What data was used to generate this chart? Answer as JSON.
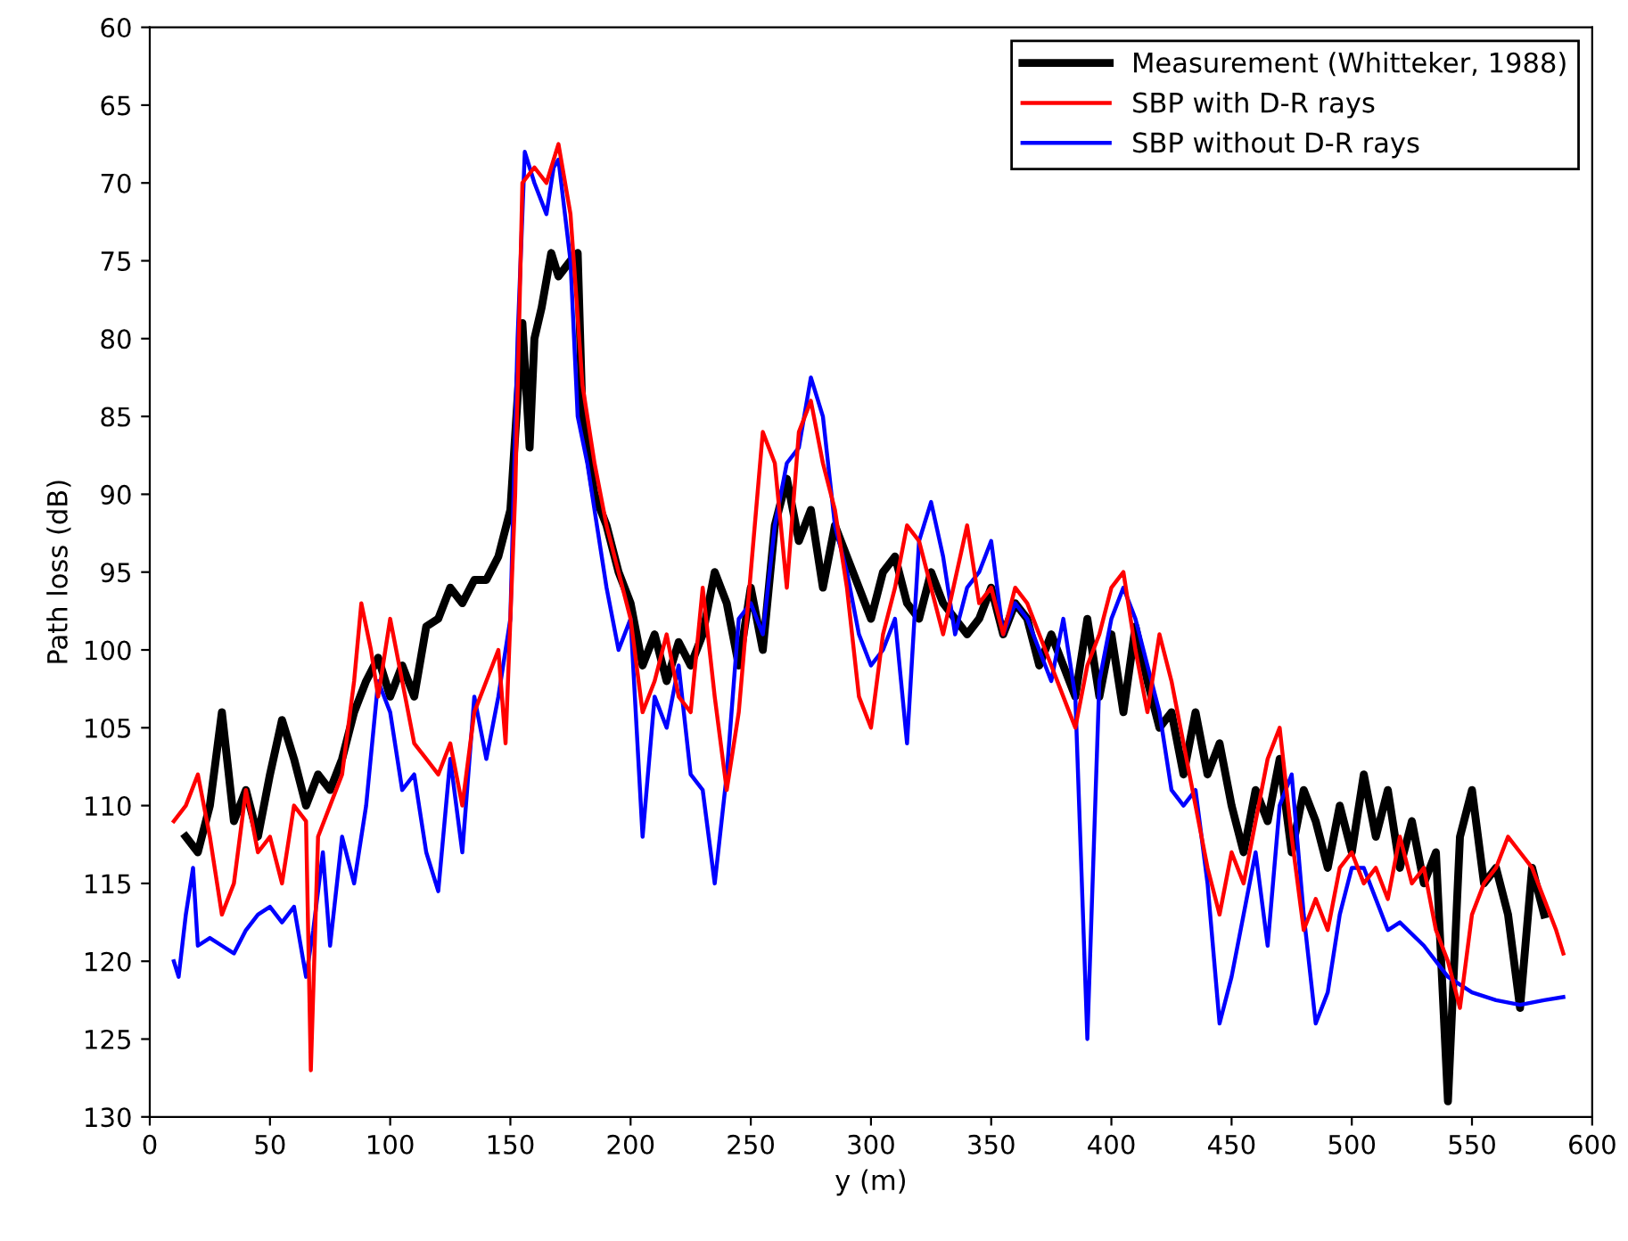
{
  "chart_data": {
    "type": "line",
    "xlabel": "y (m)",
    "ylabel": "Path loss (dB)",
    "xlim": [
      0,
      600
    ],
    "ylim": [
      130,
      60
    ],
    "xticks": [
      0,
      50,
      100,
      150,
      200,
      250,
      300,
      350,
      400,
      450,
      500,
      550,
      600
    ],
    "yticks": [
      60,
      65,
      70,
      75,
      80,
      85,
      90,
      95,
      100,
      105,
      110,
      115,
      120,
      125,
      130
    ],
    "grid": false,
    "legend": "top right",
    "marker": "none",
    "line_style": "solid",
    "series": [
      {
        "name": "Measurement (Whitteker, 1988)",
        "color": "#000000",
        "x": [
          15,
          20,
          25,
          30,
          35,
          40,
          45,
          50,
          55,
          60,
          65,
          70,
          75,
          80,
          85,
          90,
          95,
          100,
          105,
          110,
          115,
          120,
          125,
          130,
          135,
          140,
          145,
          150,
          155,
          158,
          160,
          163,
          167,
          170,
          175,
          178,
          180,
          185,
          190,
          195,
          200,
          205,
          210,
          215,
          220,
          225,
          230,
          235,
          240,
          245,
          250,
          255,
          260,
          265,
          270,
          275,
          280,
          285,
          290,
          295,
          300,
          305,
          310,
          315,
          320,
          325,
          330,
          340,
          345,
          350,
          355,
          360,
          365,
          370,
          375,
          380,
          385,
          390,
          395,
          400,
          405,
          410,
          415,
          420,
          425,
          430,
          435,
          440,
          445,
          450,
          455,
          460,
          465,
          470,
          475,
          480,
          485,
          490,
          495,
          500,
          505,
          510,
          515,
          520,
          525,
          530,
          535,
          540,
          545,
          550,
          555,
          560,
          565,
          570,
          575,
          580
        ],
        "values": [
          112,
          113,
          110,
          104,
          111,
          109,
          112,
          108,
          104.5,
          107,
          110,
          108,
          109,
          107,
          104,
          102,
          100.5,
          103,
          101,
          103,
          98.5,
          98,
          96,
          97,
          95.5,
          95.5,
          94,
          91,
          79,
          87,
          80,
          78,
          74.5,
          76,
          75,
          74.5,
          85,
          90,
          92,
          95,
          97,
          101,
          99,
          102,
          99.5,
          101,
          99,
          95,
          97,
          101,
          96,
          100,
          92,
          89,
          93,
          91,
          96,
          92,
          94,
          96,
          98,
          95,
          94,
          97,
          98,
          95,
          97,
          99,
          98,
          96,
          99,
          97,
          98,
          101,
          99,
          101,
          103,
          98,
          103,
          99,
          104,
          98.5,
          102,
          105,
          104,
          108,
          104,
          108,
          106,
          110,
          113,
          109,
          111,
          107,
          113,
          109,
          111,
          114,
          110,
          113,
          108,
          112,
          109,
          114,
          111,
          115,
          113,
          129,
          112,
          109,
          115,
          114,
          117,
          123,
          114,
          117
        ]
      },
      {
        "name": "SBP with D-R rays",
        "color": "#ff0000",
        "x": [
          10,
          15,
          20,
          25,
          30,
          35,
          40,
          45,
          50,
          55,
          60,
          65,
          67,
          70,
          75,
          80,
          85,
          88,
          92,
          95,
          100,
          105,
          110,
          115,
          120,
          125,
          130,
          135,
          140,
          145,
          148,
          152,
          155,
          160,
          165,
          170,
          175,
          180,
          185,
          190,
          195,
          200,
          205,
          210,
          215,
          220,
          225,
          230,
          235,
          240,
          245,
          250,
          255,
          260,
          265,
          270,
          275,
          280,
          285,
          290,
          295,
          300,
          305,
          310,
          315,
          320,
          325,
          330,
          340,
          345,
          350,
          355,
          360,
          365,
          370,
          375,
          380,
          385,
          390,
          395,
          400,
          405,
          410,
          415,
          420,
          425,
          430,
          435,
          440,
          445,
          450,
          455,
          460,
          465,
          470,
          475,
          480,
          485,
          490,
          495,
          500,
          505,
          510,
          515,
          520,
          525,
          530,
          535,
          540,
          545,
          550,
          555,
          560,
          565,
          570,
          575,
          580,
          585,
          588
        ],
        "values": [
          111,
          110,
          108,
          112,
          117,
          115,
          109,
          113,
          112,
          115,
          110,
          111,
          127,
          112,
          110,
          108,
          102,
          97,
          100,
          103,
          98,
          102,
          106,
          107,
          108,
          106,
          110,
          104,
          102,
          100,
          106,
          90,
          70,
          69,
          70,
          67.5,
          72,
          83,
          88,
          92,
          95,
          98,
          104,
          102,
          99,
          103,
          104,
          96,
          103,
          109,
          104,
          95,
          86,
          88,
          96,
          86,
          84,
          88,
          91,
          96,
          103,
          105,
          99,
          96,
          92,
          93,
          96,
          99,
          92,
          97,
          96,
          99,
          96,
          97,
          99,
          101,
          103,
          105,
          101,
          99,
          96,
          95,
          100,
          104,
          99,
          102,
          106,
          110,
          114,
          117,
          113,
          115,
          111,
          107,
          105,
          112,
          118,
          116,
          118,
          114,
          113,
          115,
          114,
          116,
          112,
          115,
          114,
          118,
          120,
          123,
          117,
          115,
          114,
          112,
          113,
          114,
          116,
          118,
          119.5
        ]
      },
      {
        "name": "SBP without D-R rays",
        "color": "#0000ff",
        "x": [
          10,
          12,
          15,
          18,
          20,
          25,
          30,
          35,
          40,
          45,
          50,
          55,
          60,
          65,
          68,
          72,
          75,
          80,
          85,
          90,
          95,
          100,
          105,
          110,
          115,
          120,
          125,
          130,
          135,
          140,
          145,
          150,
          153,
          156,
          160,
          165,
          168,
          170,
          175,
          178,
          182,
          186,
          190,
          195,
          200,
          205,
          210,
          215,
          220,
          225,
          230,
          235,
          240,
          245,
          250,
          255,
          260,
          265,
          270,
          275,
          280,
          285,
          290,
          295,
          300,
          305,
          310,
          315,
          320,
          325,
          330,
          335,
          340,
          345,
          350,
          355,
          360,
          365,
          370,
          375,
          380,
          385,
          390,
          395,
          400,
          405,
          410,
          415,
          420,
          425,
          430,
          435,
          440,
          445,
          450,
          455,
          460,
          465,
          470,
          475,
          480,
          485,
          490,
          495,
          500,
          505,
          510,
          515,
          520,
          530,
          540,
          550,
          560,
          570,
          580,
          588
        ],
        "values": [
          120,
          121,
          117,
          114,
          119,
          118.5,
          119,
          119.5,
          118,
          117,
          116.5,
          117.5,
          116.5,
          121,
          118,
          113,
          119,
          112,
          115,
          110,
          102,
          104,
          109,
          108,
          113,
          115.5,
          107,
          113,
          103,
          107,
          103,
          98,
          80,
          68,
          70,
          72,
          69,
          68.5,
          75,
          85,
          88,
          92,
          96,
          100,
          98,
          112,
          103,
          105,
          101,
          108,
          109,
          115,
          108,
          98,
          97,
          99,
          92,
          88,
          87,
          82.5,
          85,
          92,
          95,
          99,
          101,
          100,
          98,
          106,
          93,
          90.5,
          94,
          99,
          96,
          95,
          93,
          99,
          97,
          98,
          100,
          102,
          98,
          103,
          125,
          102,
          98,
          96,
          98,
          101,
          104,
          109,
          110,
          109,
          115,
          124,
          121,
          117,
          113,
          119,
          110,
          108,
          117,
          124,
          122,
          117,
          114,
          114,
          116,
          118,
          117.5,
          119,
          121,
          122,
          122.5,
          122.8,
          122.5,
          122.3
        ]
      }
    ]
  }
}
